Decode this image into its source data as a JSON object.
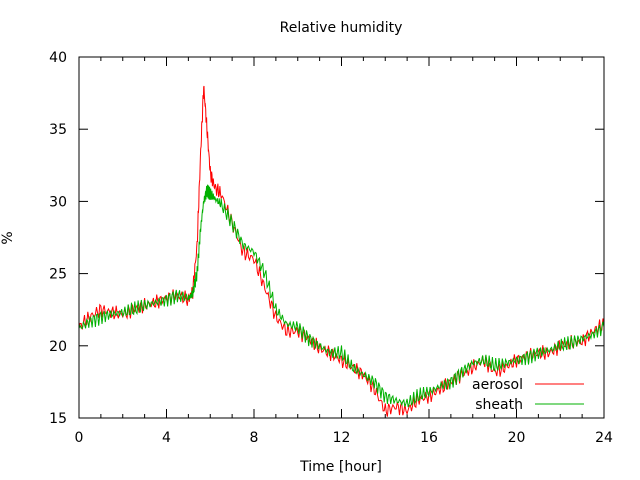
{
  "chart_data": {
    "type": "line",
    "title": "Relative humidity",
    "xlabel": "Time [hour]",
    "ylabel": "%",
    "xlim": [
      0,
      24
    ],
    "ylim": [
      15,
      40
    ],
    "x_ticks": [
      0,
      4,
      8,
      12,
      16,
      20,
      24
    ],
    "y_ticks": [
      15,
      20,
      25,
      30,
      35,
      40
    ],
    "grid": false,
    "legend_position": "bottom-right",
    "series": [
      {
        "name": "aerosol",
        "color": "#ff0000",
        "points": [
          [
            0,
            21.3
          ],
          [
            0.5,
            22.0
          ],
          [
            1,
            22.5
          ],
          [
            1.5,
            22.3
          ],
          [
            2,
            22.2
          ],
          [
            2.5,
            22.5
          ],
          [
            3,
            22.8
          ],
          [
            3.5,
            23.0
          ],
          [
            4,
            23.3
          ],
          [
            4.5,
            23.5
          ],
          [
            5,
            23.2
          ],
          [
            5.2,
            23.8
          ],
          [
            5.4,
            27.0
          ],
          [
            5.55,
            33.0
          ],
          [
            5.7,
            38.0
          ],
          [
            5.85,
            35.0
          ],
          [
            6,
            32.0
          ],
          [
            6.2,
            31.0
          ],
          [
            6.5,
            30.5
          ],
          [
            7,
            28.5
          ],
          [
            7.5,
            26.5
          ],
          [
            8,
            26.0
          ],
          [
            8.5,
            24.0
          ],
          [
            9,
            22.0
          ],
          [
            9.5,
            21.0
          ],
          [
            10,
            21.0
          ],
          [
            10.5,
            20.5
          ],
          [
            11,
            19.8
          ],
          [
            11.5,
            19.5
          ],
          [
            12,
            19.0
          ],
          [
            12.5,
            18.5
          ],
          [
            13,
            18.0
          ],
          [
            13.5,
            17.0
          ],
          [
            14,
            15.5
          ],
          [
            14.5,
            15.8
          ],
          [
            15,
            15.5
          ],
          [
            15.5,
            16.3
          ],
          [
            16,
            16.5
          ],
          [
            16.5,
            17.0
          ],
          [
            17,
            17.5
          ],
          [
            17.5,
            18.0
          ],
          [
            18,
            18.5
          ],
          [
            18.5,
            19.0
          ],
          [
            19,
            18.2
          ],
          [
            19.5,
            18.5
          ],
          [
            20,
            19.0
          ],
          [
            20.5,
            19.3
          ],
          [
            21,
            19.5
          ],
          [
            21.5,
            19.5
          ],
          [
            22,
            20.0
          ],
          [
            22.5,
            20.2
          ],
          [
            23,
            20.3
          ],
          [
            23.5,
            21.0
          ],
          [
            24,
            21.5
          ]
        ]
      },
      {
        "name": "sheath",
        "color": "#00b000",
        "points": [
          [
            0,
            21.2
          ],
          [
            0.5,
            21.7
          ],
          [
            1,
            22.0
          ],
          [
            1.5,
            22.2
          ],
          [
            2,
            22.3
          ],
          [
            2.5,
            22.5
          ],
          [
            3,
            22.8
          ],
          [
            3.5,
            23.0
          ],
          [
            4,
            23.2
          ],
          [
            4.5,
            23.5
          ],
          [
            5,
            23.3
          ],
          [
            5.2,
            23.6
          ],
          [
            5.4,
            25.0
          ],
          [
            5.55,
            28.0
          ],
          [
            5.7,
            30.0
          ],
          [
            5.85,
            30.8
          ],
          [
            6,
            30.5
          ],
          [
            6.2,
            30.2
          ],
          [
            6.5,
            29.8
          ],
          [
            7,
            28.5
          ],
          [
            7.5,
            27.0
          ],
          [
            8,
            26.5
          ],
          [
            8.5,
            25.0
          ],
          [
            9,
            22.5
          ],
          [
            9.5,
            21.5
          ],
          [
            10,
            21.3
          ],
          [
            10.5,
            20.5
          ],
          [
            11,
            20.0
          ],
          [
            11.5,
            19.5
          ],
          [
            12,
            19.5
          ],
          [
            12.5,
            18.5
          ],
          [
            13,
            18.0
          ],
          [
            13.5,
            17.5
          ],
          [
            14,
            16.5
          ],
          [
            14.5,
            16.2
          ],
          [
            15,
            16.0
          ],
          [
            15.5,
            16.5
          ],
          [
            16,
            16.8
          ],
          [
            16.5,
            17.2
          ],
          [
            17,
            17.5
          ],
          [
            17.5,
            18.2
          ],
          [
            18,
            18.8
          ],
          [
            18.5,
            19.0
          ],
          [
            19,
            18.6
          ],
          [
            19.5,
            18.8
          ],
          [
            20,
            19.0
          ],
          [
            20.5,
            19.2
          ],
          [
            21,
            19.5
          ],
          [
            21.5,
            19.7
          ],
          [
            22,
            20.0
          ],
          [
            22.5,
            20.2
          ],
          [
            23,
            20.5
          ],
          [
            23.5,
            20.8
          ],
          [
            24,
            21.3
          ]
        ]
      }
    ]
  }
}
